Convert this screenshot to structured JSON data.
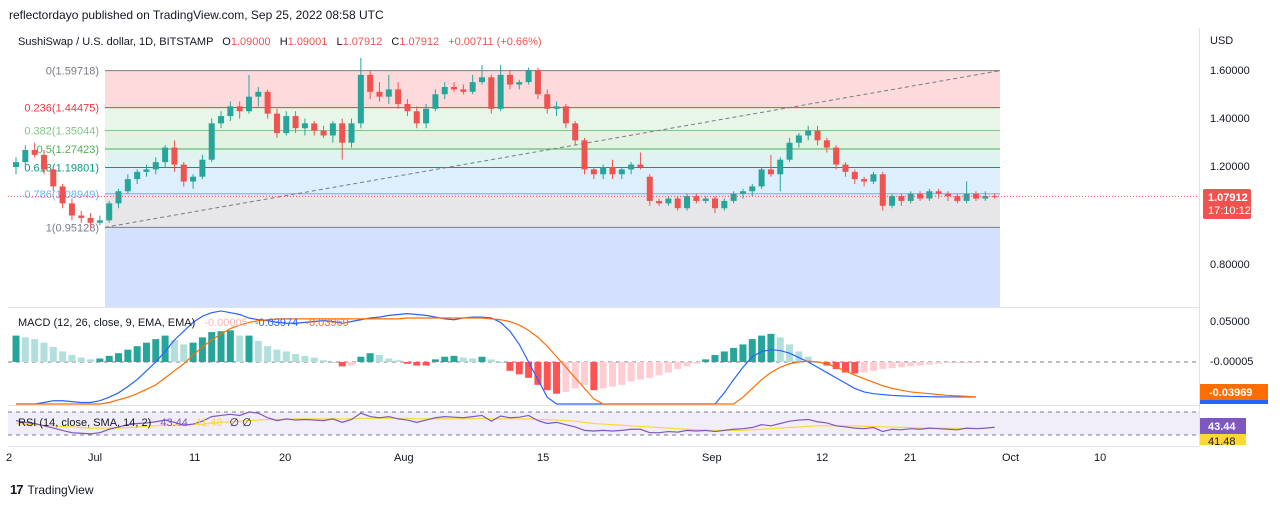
{
  "publish_text": "reflectordayo published on TradingView.com, Sep 25, 2022 08:58 UTC",
  "legend": {
    "symbol": "SushiSwap / U.S. dollar, 1D, BITSTAMP",
    "o_label": "O",
    "o": "1.09000",
    "h_label": "H",
    "h": "1.09001",
    "l_label": "L",
    "l": "1.07912",
    "c_label": "C",
    "c": "1.07912",
    "change": "+0.00711 (+0.66%)"
  },
  "currency": "USD",
  "price_axis": [
    "1.60000",
    "1.40000",
    "1.20000",
    "0.80000"
  ],
  "price_tag": {
    "value": "1.07912",
    "countdown": "17:10:12"
  },
  "fib_levels": [
    {
      "label": "0(1.59718)",
      "value": 1.59718,
      "color": "#787b86"
    },
    {
      "label": "0.236(1.44475)",
      "value": 1.44475,
      "color": "#f23645"
    },
    {
      "label": "0.382(1.35044)",
      "value": 1.35044,
      "color": "#81c784"
    },
    {
      "label": "0.5(1.27423)",
      "value": 1.27423,
      "color": "#4caf50"
    },
    {
      "label": "0.618(1.19801)",
      "value": 1.19801,
      "color": "#089981"
    },
    {
      "label": "0.786(1.08949)",
      "value": 1.08949,
      "color": "#64b5f6"
    },
    {
      "label": "1(0.95128)",
      "value": 0.95128,
      "color": "#787b86"
    }
  ],
  "macd": {
    "label": "MACD (12, 26, close, 9, EMA, EMA)",
    "hist": "-0.00005",
    "macd": "-0.03974",
    "signal": "-0.03969",
    "axis_top": "0.05000",
    "tag_hist": "-0.00005",
    "tag_signal": "-0.03969"
  },
  "rsi": {
    "label": "RSI (14, close, SMA, 14, 2)",
    "rsi": "43.44",
    "ma": "41.48",
    "zeros": "∅ ∅",
    "tag_rsi": "43.44",
    "tag_ma": "41.48"
  },
  "time_axis": [
    "Jul",
    "11",
    "20",
    "Aug",
    "15",
    "Sep",
    "12",
    "21",
    "Oct",
    "10"
  ],
  "time_axis_left_stub": "2",
  "footer_brand": "TradingView",
  "colors": {
    "up": "#26a69a",
    "down": "#ef5350",
    "macd_line": "#2962ff",
    "signal_line": "#ff6d00",
    "rsi_line": "#7e57c2",
    "rsi_ma": "#fdd835"
  },
  "chart_data": {
    "type": "candlestick",
    "ylim": [
      0.8,
      1.6
    ],
    "candles": [
      [
        1.2,
        1.24,
        1.17,
        1.22
      ],
      [
        1.22,
        1.29,
        1.2,
        1.27
      ],
      [
        1.27,
        1.3,
        1.24,
        1.25
      ],
      [
        1.25,
        1.27,
        1.17,
        1.19
      ],
      [
        1.19,
        1.2,
        1.1,
        1.12
      ],
      [
        1.12,
        1.13,
        1.03,
        1.05
      ],
      [
        1.05,
        1.07,
        0.98,
        1.0
      ],
      [
        1.0,
        1.02,
        0.97,
        0.99
      ],
      [
        0.99,
        1.01,
        0.95,
        0.97
      ],
      [
        0.97,
        1.0,
        0.96,
        0.98
      ],
      [
        0.98,
        1.06,
        0.97,
        1.05
      ],
      [
        1.05,
        1.11,
        1.03,
        1.1
      ],
      [
        1.1,
        1.17,
        1.09,
        1.15
      ],
      [
        1.15,
        1.19,
        1.13,
        1.18
      ],
      [
        1.18,
        1.21,
        1.16,
        1.19
      ],
      [
        1.19,
        1.24,
        1.17,
        1.22
      ],
      [
        1.22,
        1.29,
        1.2,
        1.28
      ],
      [
        1.28,
        1.31,
        1.18,
        1.21
      ],
      [
        1.21,
        1.22,
        1.12,
        1.14
      ],
      [
        1.14,
        1.17,
        1.11,
        1.16
      ],
      [
        1.16,
        1.25,
        1.15,
        1.23
      ],
      [
        1.23,
        1.4,
        1.22,
        1.38
      ],
      [
        1.38,
        1.43,
        1.36,
        1.41
      ],
      [
        1.41,
        1.47,
        1.39,
        1.45
      ],
      [
        1.45,
        1.47,
        1.4,
        1.43
      ],
      [
        1.43,
        1.58,
        1.42,
        1.49
      ],
      [
        1.49,
        1.53,
        1.45,
        1.51
      ],
      [
        1.51,
        1.52,
        1.4,
        1.42
      ],
      [
        1.42,
        1.44,
        1.32,
        1.34
      ],
      [
        1.34,
        1.43,
        1.33,
        1.41
      ],
      [
        1.41,
        1.43,
        1.34,
        1.36
      ],
      [
        1.36,
        1.4,
        1.33,
        1.38
      ],
      [
        1.38,
        1.39,
        1.33,
        1.35
      ],
      [
        1.35,
        1.37,
        1.32,
        1.33
      ],
      [
        1.33,
        1.39,
        1.3,
        1.38
      ],
      [
        1.38,
        1.4,
        1.23,
        1.3
      ],
      [
        1.3,
        1.4,
        1.28,
        1.38
      ],
      [
        1.38,
        1.65,
        1.36,
        1.58
      ],
      [
        1.58,
        1.6,
        1.48,
        1.51
      ],
      [
        1.51,
        1.55,
        1.47,
        1.49
      ],
      [
        1.49,
        1.58,
        1.46,
        1.52
      ],
      [
        1.52,
        1.55,
        1.44,
        1.46
      ],
      [
        1.46,
        1.48,
        1.41,
        1.43
      ],
      [
        1.43,
        1.45,
        1.36,
        1.38
      ],
      [
        1.38,
        1.46,
        1.36,
        1.44
      ],
      [
        1.44,
        1.52,
        1.43,
        1.5
      ],
      [
        1.5,
        1.55,
        1.48,
        1.53
      ],
      [
        1.53,
        1.55,
        1.51,
        1.52
      ],
      [
        1.52,
        1.54,
        1.5,
        1.51
      ],
      [
        1.51,
        1.58,
        1.5,
        1.55
      ],
      [
        1.55,
        1.62,
        1.54,
        1.57
      ],
      [
        1.57,
        1.58,
        1.42,
        1.44
      ],
      [
        1.44,
        1.62,
        1.43,
        1.58
      ],
      [
        1.58,
        1.6,
        1.52,
        1.54
      ],
      [
        1.54,
        1.56,
        1.52,
        1.55
      ],
      [
        1.55,
        1.61,
        1.54,
        1.6
      ],
      [
        1.6,
        1.61,
        1.48,
        1.5
      ],
      [
        1.5,
        1.52,
        1.42,
        1.44
      ],
      [
        1.44,
        1.47,
        1.41,
        1.45
      ],
      [
        1.45,
        1.46,
        1.36,
        1.38
      ],
      [
        1.38,
        1.39,
        1.29,
        1.31
      ],
      [
        1.31,
        1.32,
        1.17,
        1.19
      ],
      [
        1.19,
        1.2,
        1.15,
        1.17
      ],
      [
        1.17,
        1.21,
        1.15,
        1.2
      ],
      [
        1.2,
        1.23,
        1.15,
        1.17
      ],
      [
        1.17,
        1.2,
        1.15,
        1.19
      ],
      [
        1.19,
        1.22,
        1.17,
        1.21
      ],
      [
        1.21,
        1.26,
        1.19,
        1.2
      ],
      [
        1.16,
        1.17,
        1.04,
        1.06
      ],
      [
        1.06,
        1.07,
        1.04,
        1.05
      ],
      [
        1.05,
        1.08,
        1.04,
        1.07
      ],
      [
        1.07,
        1.08,
        1.02,
        1.03
      ],
      [
        1.03,
        1.09,
        1.02,
        1.08
      ],
      [
        1.08,
        1.09,
        1.05,
        1.06
      ],
      [
        1.06,
        1.08,
        1.05,
        1.07
      ],
      [
        1.07,
        1.08,
        1.01,
        1.03
      ],
      [
        1.03,
        1.07,
        1.02,
        1.06
      ],
      [
        1.06,
        1.1,
        1.05,
        1.09
      ],
      [
        1.09,
        1.11,
        1.07,
        1.1
      ],
      [
        1.1,
        1.13,
        1.08,
        1.12
      ],
      [
        1.12,
        1.2,
        1.11,
        1.19
      ],
      [
        1.19,
        1.25,
        1.16,
        1.17
      ],
      [
        1.17,
        1.24,
        1.1,
        1.23
      ],
      [
        1.23,
        1.32,
        1.22,
        1.3
      ],
      [
        1.3,
        1.34,
        1.28,
        1.33
      ],
      [
        1.33,
        1.37,
        1.31,
        1.35
      ],
      [
        1.35,
        1.37,
        1.29,
        1.31
      ],
      [
        1.31,
        1.32,
        1.26,
        1.28
      ],
      [
        1.28,
        1.29,
        1.19,
        1.21
      ],
      [
        1.21,
        1.22,
        1.16,
        1.18
      ],
      [
        1.18,
        1.19,
        1.13,
        1.15
      ],
      [
        1.15,
        1.16,
        1.12,
        1.14
      ],
      [
        1.14,
        1.18,
        1.13,
        1.17
      ],
      [
        1.17,
        1.18,
        1.02,
        1.04
      ],
      [
        1.04,
        1.09,
        1.03,
        1.08
      ],
      [
        1.08,
        1.09,
        1.04,
        1.06
      ],
      [
        1.06,
        1.1,
        1.05,
        1.09
      ],
      [
        1.09,
        1.1,
        1.06,
        1.07
      ],
      [
        1.07,
        1.11,
        1.06,
        1.1
      ],
      [
        1.1,
        1.11,
        1.07,
        1.09
      ],
      [
        1.09,
        1.1,
        1.06,
        1.08
      ],
      [
        1.08,
        1.09,
        1.05,
        1.06
      ],
      [
        1.06,
        1.14,
        1.05,
        1.09
      ],
      [
        1.09,
        1.1,
        1.06,
        1.07
      ],
      [
        1.07,
        1.1,
        1.06,
        1.08
      ],
      [
        1.08,
        1.09,
        1.07,
        1.079
      ]
    ],
    "macd_hist": [
      0.03,
      0.028,
      0.026,
      0.022,
      0.017,
      0.012,
      0.008,
      0.005,
      0.003,
      0.004,
      0.007,
      0.01,
      0.014,
      0.018,
      0.022,
      0.026,
      0.03,
      0.025,
      0.02,
      0.022,
      0.028,
      0.034,
      0.035,
      0.036,
      0.03,
      0.03,
      0.024,
      0.018,
      0.014,
      0.012,
      0.009,
      0.007,
      0.005,
      0.002,
      0.0,
      -0.005,
      -0.004,
      0.006,
      0.01,
      0.008,
      0.004,
      0.002,
      -0.002,
      -0.004,
      -0.004,
      0.003,
      0.006,
      0.007,
      0.005,
      0.004,
      0.006,
      0.003,
      0.0,
      -0.01,
      -0.014,
      -0.018,
      -0.026,
      -0.032,
      -0.036,
      -0.034,
      -0.03,
      -0.026,
      -0.032,
      -0.03,
      -0.028,
      -0.026,
      -0.022,
      -0.02,
      -0.018,
      -0.015,
      -0.012,
      -0.008,
      -0.005,
      -0.002,
      0.003,
      0.008,
      0.012,
      0.016,
      0.02,
      0.026,
      0.03,
      0.032,
      0.028,
      0.02,
      0.012,
      0.006,
      0.0,
      -0.004,
      -0.008,
      -0.012,
      -0.013,
      -0.012,
      -0.01,
      -0.008,
      -0.007,
      -0.006,
      -0.005,
      -0.004,
      -0.003,
      -0.002,
      -0.001,
      -0.0005,
      -0.0002,
      -5e-05
    ],
    "macd_line": [
      -0.06,
      -0.055,
      -0.05,
      -0.046,
      -0.044,
      -0.044,
      -0.045,
      -0.046,
      -0.046,
      -0.044,
      -0.04,
      -0.035,
      -0.028,
      -0.02,
      -0.01,
      0.0,
      0.012,
      0.025,
      0.035,
      0.045,
      0.052,
      0.056,
      0.058,
      0.056,
      0.054,
      0.05,
      0.048,
      0.047,
      0.045,
      0.044,
      0.044,
      0.045,
      0.046,
      0.047,
      0.046,
      0.044,
      0.046,
      0.048,
      0.05,
      0.051,
      0.053,
      0.054,
      0.055,
      0.054,
      0.053,
      0.051,
      0.049,
      0.048,
      0.05,
      0.051,
      0.051,
      0.05,
      0.045,
      0.035,
      0.02,
      0.0,
      -0.02,
      -0.04,
      -0.06,
      -0.075,
      -0.085,
      -0.09,
      -0.095,
      -0.1,
      -0.1,
      -0.1,
      -0.1,
      -0.1,
      -0.1,
      -0.1,
      -0.095,
      -0.09,
      -0.085,
      -0.075,
      -0.062,
      -0.05,
      -0.035,
      -0.02,
      -0.006,
      0.006,
      0.012,
      0.014,
      0.013,
      0.01,
      0.005,
      0.0,
      -0.006,
      -0.012,
      -0.018,
      -0.024,
      -0.03,
      -0.034,
      -0.036,
      -0.037,
      -0.038,
      -0.0385,
      -0.039,
      -0.0392,
      -0.0394,
      -0.0396,
      -0.0397,
      -0.0397,
      -0.0397,
      -0.03974
    ],
    "signal_line": [
      -0.09,
      -0.085,
      -0.08,
      -0.075,
      -0.07,
      -0.065,
      -0.06,
      -0.056,
      -0.052,
      -0.049,
      -0.046,
      -0.043,
      -0.04,
      -0.036,
      -0.031,
      -0.026,
      -0.018,
      -0.01,
      -0.002,
      0.008,
      0.017,
      0.025,
      0.032,
      0.038,
      0.042,
      0.045,
      0.047,
      0.048,
      0.049,
      0.049,
      0.049,
      0.049,
      0.049,
      0.049,
      0.049,
      0.049,
      0.049,
      0.049,
      0.049,
      0.049,
      0.049,
      0.049,
      0.05,
      0.05,
      0.05,
      0.05,
      0.05,
      0.05,
      0.05,
      0.05,
      0.05,
      0.049,
      0.048,
      0.046,
      0.042,
      0.036,
      0.028,
      0.018,
      0.006,
      -0.006,
      -0.018,
      -0.03,
      -0.042,
      -0.052,
      -0.06,
      -0.066,
      -0.072,
      -0.076,
      -0.08,
      -0.082,
      -0.084,
      -0.084,
      -0.083,
      -0.08,
      -0.075,
      -0.068,
      -0.06,
      -0.05,
      -0.04,
      -0.03,
      -0.02,
      -0.012,
      -0.006,
      -0.002,
      0.0,
      0.001,
      0.0,
      -0.002,
      -0.006,
      -0.01,
      -0.015,
      -0.019,
      -0.023,
      -0.027,
      -0.03,
      -0.032,
      -0.034,
      -0.035,
      -0.036,
      -0.037,
      -0.038,
      -0.0385,
      -0.039,
      -0.03969
    ],
    "rsi_line": [
      55,
      52,
      50,
      46,
      42,
      38,
      34,
      33,
      32,
      34,
      40,
      44,
      48,
      50,
      51,
      53,
      56,
      52,
      47,
      49,
      54,
      62,
      64,
      66,
      64,
      70,
      68,
      60,
      55,
      58,
      56,
      57,
      56,
      55,
      58,
      52,
      57,
      68,
      62,
      60,
      62,
      58,
      56,
      52,
      56,
      60,
      62,
      61,
      60,
      62,
      64,
      54,
      63,
      60,
      61,
      64,
      55,
      50,
      52,
      48,
      44,
      38,
      37,
      38,
      37,
      38,
      40,
      40,
      34,
      34,
      36,
      35,
      38,
      37,
      38,
      36,
      38,
      40,
      41,
      43,
      48,
      46,
      50,
      54,
      56,
      57,
      53,
      51,
      46,
      44,
      42,
      41,
      43,
      36,
      40,
      39,
      41,
      40,
      42,
      41,
      40,
      39,
      42,
      41,
      42,
      43.44
    ],
    "rsi_ma": [
      50,
      49,
      48,
      47,
      46,
      45,
      44,
      43,
      42,
      42,
      42,
      42,
      43,
      44,
      45,
      46,
      47,
      47,
      47,
      48,
      49,
      51,
      52,
      53,
      54,
      55,
      56,
      57,
      57,
      57,
      58,
      58,
      58,
      58,
      58,
      58,
      58,
      59,
      59,
      59,
      59,
      59,
      59,
      58,
      58,
      58,
      58,
      58,
      58,
      58,
      59,
      58,
      58,
      58,
      58,
      58,
      57,
      57,
      56,
      55,
      54,
      52,
      50,
      49,
      48,
      47,
      46,
      45,
      44,
      43,
      42,
      41,
      40,
      39,
      38,
      38,
      38,
      38,
      38,
      39,
      40,
      41,
      42,
      43,
      44,
      45,
      46,
      46,
      46,
      46,
      46,
      45,
      45,
      44,
      44,
      43,
      43,
      42,
      42,
      42,
      41.8,
      41.6,
      41.5,
      41.48
    ]
  }
}
